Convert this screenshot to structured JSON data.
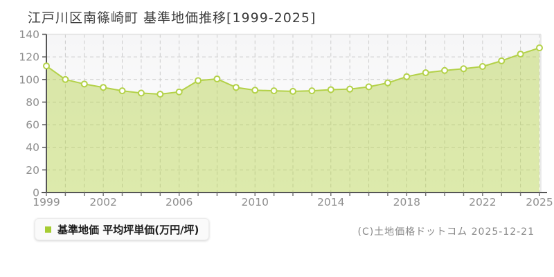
{
  "title": "江戸川区南篠崎町 基準地価推移[1999-2025]",
  "legend": {
    "label": "基準地価 平均坪単価(万円/坪)",
    "marker_color": "#a6cc33"
  },
  "copyright": "(C)土地価格ドットコム 2025-12-21",
  "colors": {
    "line": "#b3d148",
    "area_fill": "rgba(179,209,72,0.45)",
    "marker_fill": "#ffffff",
    "grid": "#cccccc",
    "axis": "#555555",
    "plot_border": "#e2e2e2",
    "tick_label": "#8f8f8f",
    "plot_bg_top": "#f6f6f7",
    "plot_bg_bottom": "#ffffff"
  },
  "chart_data": {
    "type": "area",
    "title": "江戸川区南篠崎町 基準地価推移[1999-2025]",
    "x": [
      1999,
      2000,
      2001,
      2002,
      2003,
      2004,
      2005,
      2006,
      2007,
      2008,
      2009,
      2010,
      2011,
      2012,
      2013,
      2014,
      2015,
      2016,
      2017,
      2018,
      2019,
      2020,
      2021,
      2022,
      2023,
      2024,
      2025
    ],
    "series": [
      {
        "name": "基準地価 平均坪単価(万円/坪)",
        "values": [
          112,
          100,
          96,
          93,
          90,
          88,
          87,
          89,
          99,
          100.5,
          93,
          90.5,
          90,
          89.5,
          90,
          91,
          91.5,
          93.5,
          97,
          102.5,
          106,
          108,
          109.5,
          111.5,
          116.5,
          122.5,
          128
        ]
      }
    ],
    "xlabel": "",
    "ylabel": "",
    "ylim": [
      0,
      140
    ],
    "yticks": [
      0,
      20,
      40,
      60,
      80,
      100,
      120,
      140
    ],
    "xtick_labeled_years": [
      1999,
      2002,
      2006,
      2010,
      2014,
      2018,
      2022,
      2025
    ],
    "grid": true,
    "grid_style": "dashed",
    "legend_position": "bottom-left",
    "unit": "万円/坪"
  }
}
